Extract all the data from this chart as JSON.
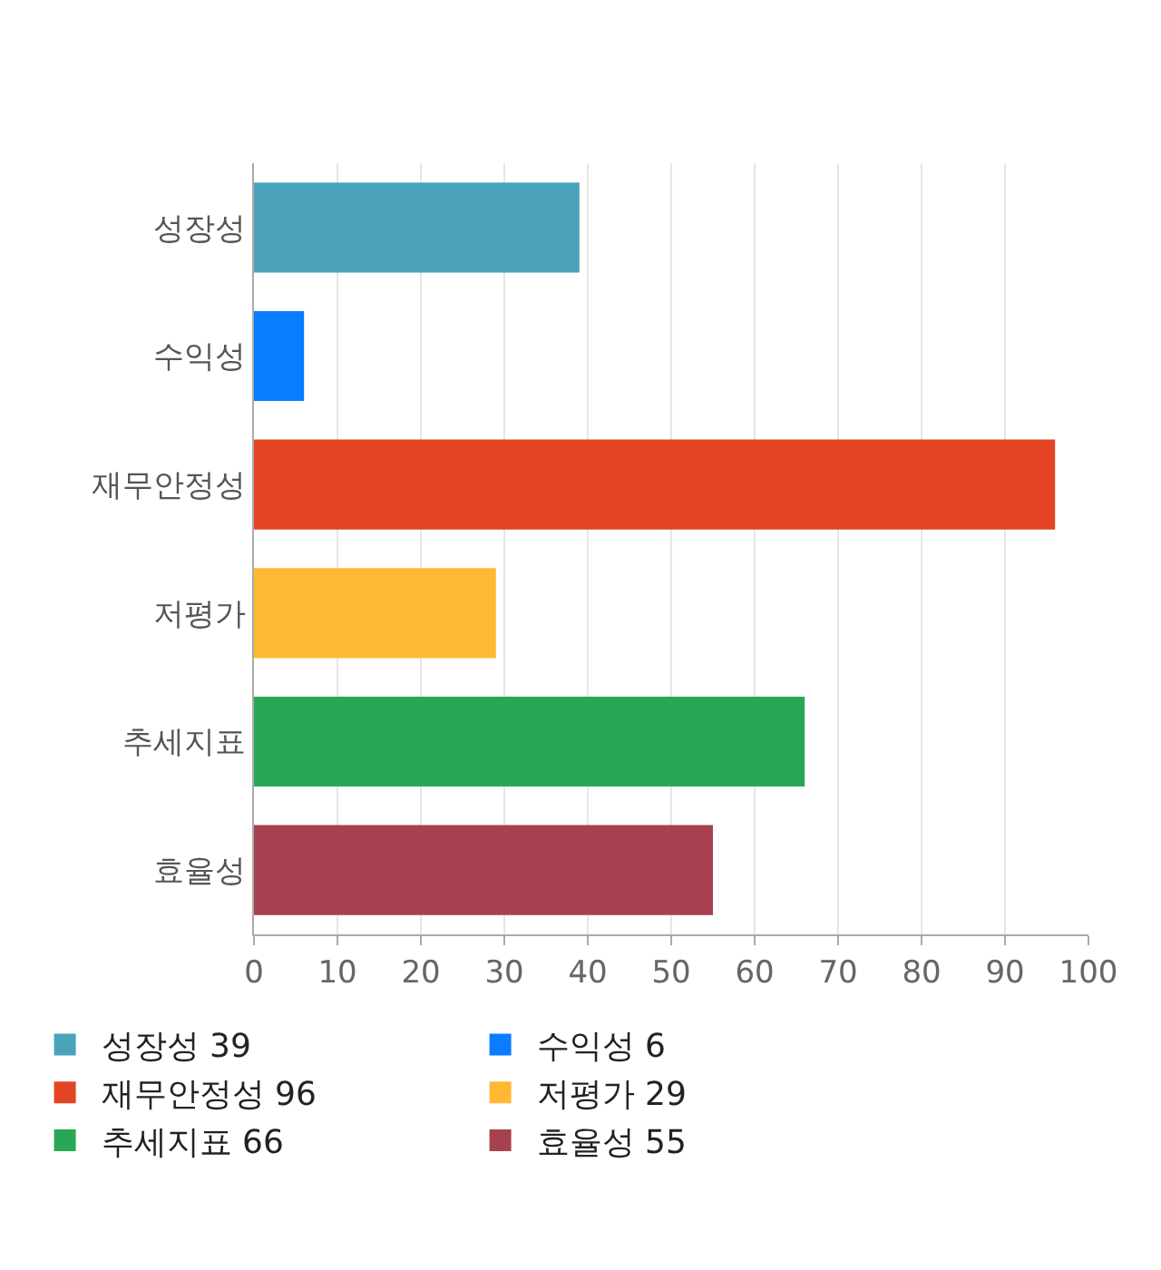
{
  "chart_data": {
    "type": "bar",
    "orientation": "horizontal",
    "categories": [
      "성장성",
      "수익성",
      "재무안정성",
      "저평가",
      "추세지표",
      "효율성"
    ],
    "series": [
      {
        "name": "성장성 39",
        "color": "#4aa3bb",
        "values": [
          39,
          null,
          null,
          null,
          null,
          null
        ]
      },
      {
        "name": "수익성 6",
        "color": "#0a7cff",
        "values": [
          null,
          6,
          null,
          null,
          null,
          null
        ]
      },
      {
        "name": "재무안정성 96",
        "color": "#e24424",
        "values": [
          null,
          null,
          96,
          null,
          null,
          null
        ]
      },
      {
        "name": "저평가 29",
        "color": "#ffb834",
        "values": [
          null,
          null,
          null,
          29,
          null,
          null
        ]
      },
      {
        "name": "추세지표 66",
        "color": "#28a855",
        "values": [
          null,
          null,
          null,
          null,
          66,
          null
        ]
      },
      {
        "name": "효율성 55",
        "color": "#a6424f",
        "values": [
          null,
          null,
          null,
          null,
          null,
          55
        ]
      }
    ],
    "xlim": [
      0,
      100
    ],
    "xticks": [
      0,
      10,
      20,
      30,
      40,
      50,
      60,
      70,
      80,
      90,
      100
    ],
    "grid": "x",
    "legend": "bottom"
  }
}
